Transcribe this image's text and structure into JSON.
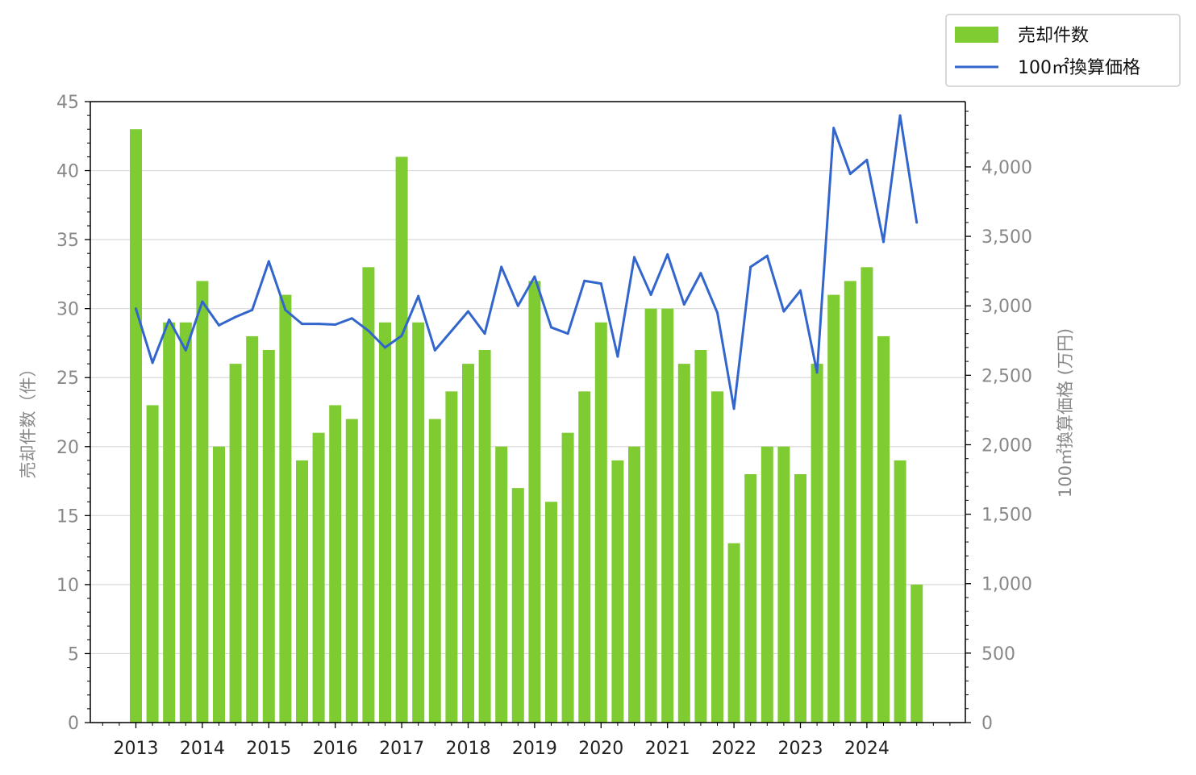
{
  "chart_data": {
    "type": "bar",
    "x_years": [
      "2013",
      "2014",
      "2015",
      "2016",
      "2017",
      "2018",
      "2019",
      "2020",
      "2021",
      "2022",
      "2023",
      "2024"
    ],
    "quarters": [
      "2013Q1",
      "2013Q2",
      "2013Q3",
      "2013Q4",
      "2014Q1",
      "2014Q2",
      "2014Q3",
      "2014Q4",
      "2015Q1",
      "2015Q2",
      "2015Q3",
      "2015Q4",
      "2016Q1",
      "2016Q2",
      "2016Q3",
      "2016Q4",
      "2017Q1",
      "2017Q2",
      "2017Q3",
      "2017Q4",
      "2018Q1",
      "2018Q2",
      "2018Q3",
      "2018Q4",
      "2019Q1",
      "2019Q2",
      "2019Q3",
      "2019Q4",
      "2020Q1",
      "2020Q2",
      "2020Q3",
      "2020Q4",
      "2021Q1",
      "2021Q2",
      "2021Q3",
      "2021Q4",
      "2022Q1",
      "2022Q2",
      "2022Q3",
      "2022Q4",
      "2023Q1",
      "2023Q2",
      "2023Q3",
      "2023Q4",
      "2024Q1",
      "2024Q2",
      "2024Q3",
      "2024Q4"
    ],
    "series": [
      {
        "name": "売却件数",
        "type": "bar",
        "axis": "left",
        "color": "#7fcb32",
        "values": [
          43,
          23,
          29,
          29,
          32,
          20,
          26,
          28,
          27,
          31,
          19,
          21,
          23,
          22,
          33,
          29,
          41,
          29,
          22,
          24,
          26,
          27,
          20,
          17,
          32,
          16,
          21,
          24,
          29,
          19,
          20,
          30,
          30,
          26,
          27,
          24,
          13,
          18,
          20,
          20,
          18,
          26,
          31,
          32,
          33,
          28,
          19,
          10
        ]
      },
      {
        "name": "100㎡換算価格",
        "type": "line",
        "axis": "right",
        "color": "#3366cc",
        "values": [
          2980,
          2590,
          2900,
          2680,
          3030,
          2860,
          2920,
          2970,
          3320,
          2970,
          2870,
          2870,
          2865,
          2910,
          2820,
          2700,
          2785,
          3070,
          2680,
          2820,
          2960,
          2800,
          3280,
          3000,
          3210,
          2845,
          2800,
          3180,
          3160,
          2635,
          3350,
          3080,
          3370,
          3010,
          3235,
          2950,
          2260,
          3280,
          3360,
          2960,
          3110,
          2520,
          4280,
          3950,
          4050,
          3460,
          4370,
          3600
        ]
      }
    ],
    "y_left": {
      "label": "売却件数（件）",
      "lim": [
        0,
        45
      ],
      "ticks": [
        "0",
        "5",
        "10",
        "15",
        "20",
        "25",
        "30",
        "35",
        "40",
        "45"
      ]
    },
    "y_right": {
      "label": "100㎡換算価格 (万円)",
      "lim": [
        0,
        4470
      ],
      "ticks": [
        "0",
        "500",
        "1,000",
        "1,500",
        "2,000",
        "2,500",
        "3,000",
        "3,500",
        "4,000"
      ]
    },
    "grid": true,
    "legend_position": "top-right"
  }
}
